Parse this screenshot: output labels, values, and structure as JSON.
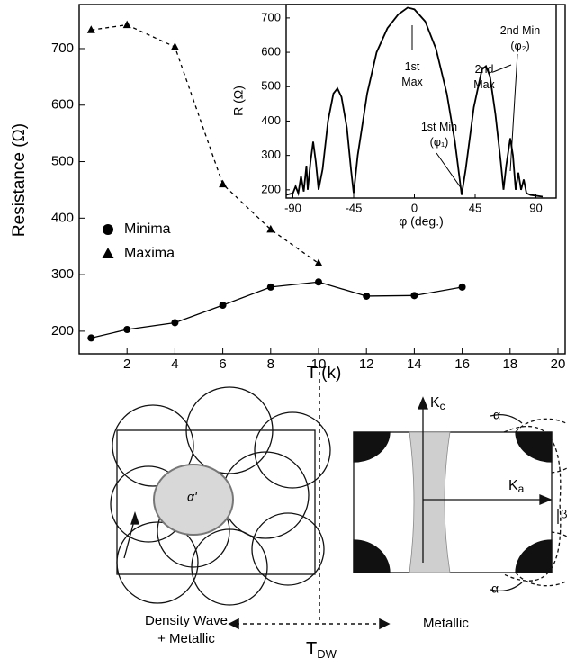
{
  "chart_data": [
    {
      "type": "line",
      "x_label": "T (k)",
      "y_label": "Resistance (Ω)",
      "xlim": [
        0,
        20
      ],
      "xticks": [
        2,
        4,
        6,
        8,
        10,
        12,
        14,
        16,
        18,
        20
      ],
      "ylim": [
        160,
        778
      ],
      "yticks": [
        200,
        300,
        400,
        500,
        600,
        700
      ],
      "legend": "center left",
      "series": [
        {
          "name": "Minima",
          "color": "#000000",
          "marker": "circle",
          "dash": false,
          "x": [
            0.5,
            2,
            4,
            6,
            8,
            10,
            12,
            14,
            16
          ],
          "values": [
            188,
            203,
            215,
            246,
            278,
            287,
            262,
            263,
            278
          ]
        },
        {
          "name": "Maxima",
          "color": "#000000",
          "marker": "triangle",
          "dash": true,
          "x": [
            0.5,
            2,
            4,
            6,
            8,
            10
          ],
          "values": [
            733,
            742,
            703,
            460,
            380,
            320
          ]
        }
      ]
    },
    {
      "type": "line",
      "x_label": "φ (deg.)",
      "y_label": "R (Ω)",
      "xlim": [
        -95,
        105
      ],
      "xticks": [
        -90,
        -45,
        0,
        45,
        90
      ],
      "ylim": [
        176,
        739
      ],
      "yticks": [
        200,
        300,
        400,
        500,
        600,
        700
      ],
      "annotations": [
        "1st Max",
        "2nd Max",
        "2nd Min (φ₂)",
        "1st Min (φ₁)"
      ],
      "series": [
        {
          "color": "#000000",
          "x": [
            -95,
            -90,
            -88,
            -86,
            -84,
            -82,
            -80,
            -79,
            -77,
            -75,
            -73,
            -71,
            -68,
            -64,
            -60,
            -57,
            -54,
            -50,
            -47,
            -45,
            -42,
            -35,
            -28,
            -20,
            -12,
            -5,
            0,
            8,
            16,
            24,
            30,
            35,
            38,
            44,
            50,
            53,
            56,
            60,
            64,
            66,
            68,
            71,
            73,
            75,
            77,
            79,
            81,
            83,
            86,
            95
          ],
          "values": [
            185,
            190,
            210,
            190,
            240,
            195,
            270,
            200,
            280,
            340,
            280,
            200,
            260,
            400,
            480,
            495,
            470,
            380,
            260,
            190,
            300,
            480,
            600,
            670,
            710,
            730,
            725,
            690,
            610,
            480,
            340,
            185,
            260,
            440,
            550,
            560,
            530,
            420,
            280,
            200,
            270,
            350,
            300,
            200,
            250,
            200,
            230,
            190,
            185,
            180
          ]
        }
      ]
    }
  ],
  "diagram": {
    "alpha_prime": "α'",
    "kc": {
      "main": "K",
      "sub": "c"
    },
    "ka": {
      "main": "K",
      "sub": "a"
    },
    "alpha": "α",
    "beta": "β",
    "left_label": [
      "Density Wave",
      "+ Metallic"
    ],
    "right_label": "Metallic",
    "transition": {
      "main": "T",
      "sub": "DW"
    }
  }
}
